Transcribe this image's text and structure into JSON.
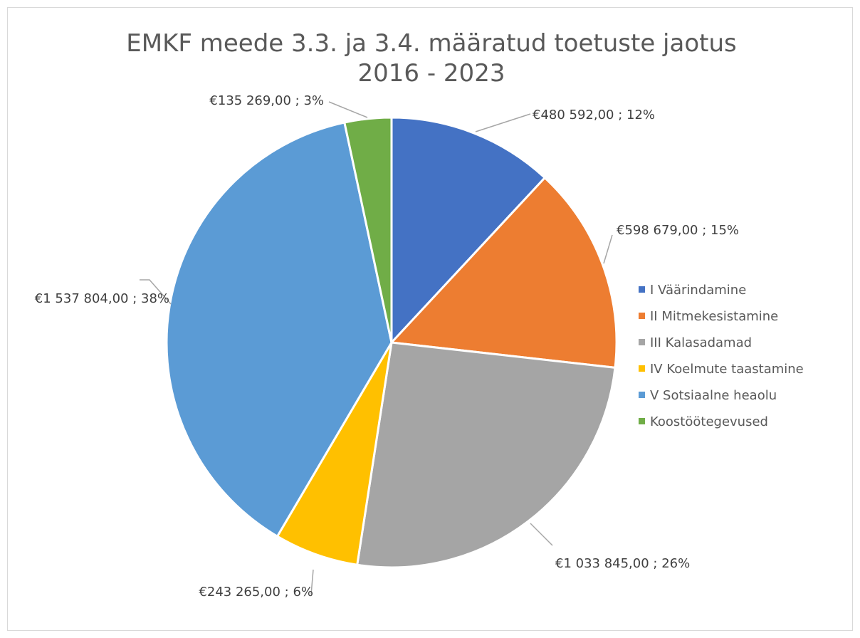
{
  "chart_data": {
    "type": "pie",
    "title": [
      "EMKF meede 3.3. ja 3.4. määratud toetuste jaotus",
      "2016 - 2023"
    ],
    "categories": [
      "I Väärindamine",
      "II Mitmekesistamine",
      "III Kalasadamad",
      "IV Koelmute taastamine",
      "V Sotsiaalne heaolu",
      "Koostöötegevused"
    ],
    "values": [
      480592,
      598679,
      1033845,
      243265,
      1537804,
      135269
    ],
    "value_labels": [
      "€480 592,00 ; 12%",
      "€598 679,00 ; 15%",
      "€1 033 845,00 ; 26%",
      "€243 265,00 ; 6%",
      "€1 537 804,00 ; 38%",
      "€135 269,00 ; 3%"
    ],
    "colors": [
      "#4472c4",
      "#ed7d31",
      "#a5a5a5",
      "#ffc000",
      "#5b9bd5",
      "#70ad47"
    ],
    "legend": "right"
  }
}
